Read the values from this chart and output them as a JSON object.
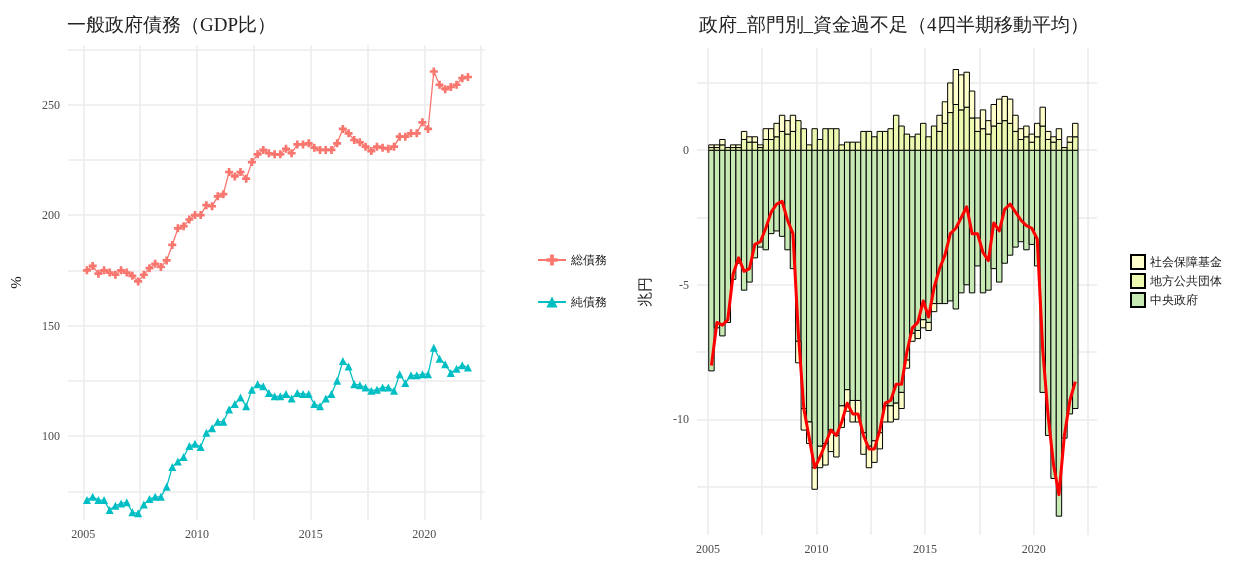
{
  "chart_data": [
    {
      "type": "line",
      "title": "一般政府債務（GDP比）",
      "ylabel": "%",
      "x": [
        "2005-03",
        "2005-06",
        "2005-09",
        "2005-12",
        "2006-03",
        "2006-06",
        "2006-09",
        "2006-12",
        "2007-03",
        "2007-06",
        "2007-09",
        "2007-12",
        "2008-03",
        "2008-06",
        "2008-09",
        "2008-12",
        "2009-03",
        "2009-06",
        "2009-09",
        "2009-12",
        "2010-03",
        "2010-06",
        "2010-09",
        "2010-12",
        "2011-03",
        "2011-06",
        "2011-09",
        "2011-12",
        "2012-03",
        "2012-06",
        "2012-09",
        "2012-12",
        "2013-03",
        "2013-06",
        "2013-09",
        "2013-12",
        "2014-03",
        "2014-06",
        "2014-09",
        "2014-12",
        "2015-03",
        "2015-06",
        "2015-09",
        "2015-12",
        "2016-03",
        "2016-06",
        "2016-09",
        "2016-12",
        "2017-03",
        "2017-06",
        "2017-09",
        "2017-12",
        "2018-03",
        "2018-06",
        "2018-09",
        "2018-12",
        "2019-03",
        "2019-06",
        "2019-09",
        "2019-12",
        "2020-03",
        "2020-06",
        "2020-09",
        "2020-12",
        "2021-03",
        "2021-06",
        "2021-09",
        "2021-12"
      ],
      "series": [
        {
          "name": "総債務",
          "color": "#f8766d",
          "marker": "cross",
          "values": [
            175,
            177,
            173.5,
            175,
            174,
            173,
            175,
            174,
            172.5,
            170,
            173,
            176,
            178,
            176.5,
            179.5,
            186.5,
            194,
            195,
            198,
            200,
            200,
            204.5,
            204,
            208.5,
            209.5,
            219.5,
            217.5,
            219.5,
            216.5,
            224,
            227.5,
            229.5,
            228,
            227.5,
            227.5,
            230,
            228,
            232,
            232,
            232.5,
            230.5,
            229.5,
            229.5,
            229.5,
            232.5,
            239,
            237,
            234,
            233,
            231,
            229,
            231,
            230.5,
            230,
            231,
            235.5,
            235.5,
            237,
            237,
            242,
            239,
            265,
            259,
            257,
            258,
            259,
            262,
            262.5
          ]
        },
        {
          "name": "純債務",
          "color": "#00bfc4",
          "marker": "triangle",
          "values": [
            71,
            72.5,
            71,
            71,
            66.5,
            68.5,
            69.5,
            70,
            65.5,
            65,
            69,
            71.5,
            72.5,
            72.5,
            77,
            86,
            88.5,
            90.5,
            95.5,
            96.5,
            95,
            101.5,
            103.5,
            106.5,
            106.5,
            112,
            114.5,
            117.5,
            113.5,
            121,
            123.5,
            122.5,
            119.5,
            118,
            118,
            119,
            117,
            119.5,
            119,
            119,
            114.5,
            113.5,
            117,
            119,
            125,
            134,
            131.5,
            123.5,
            123,
            122,
            120.5,
            121,
            122,
            122,
            120.5,
            128,
            124,
            127.5,
            127.5,
            128,
            128,
            140,
            135,
            132.5,
            128.5,
            130.5,
            132,
            131
          ]
        }
      ],
      "xlim": [
        "2004-05",
        "2022-09"
      ],
      "xticks": [
        "2005",
        {
          "value": "2007-07",
          "label": null
        },
        "2010",
        {
          "value": "2012-07",
          "label": null
        },
        "2015",
        {
          "value": "2017-07",
          "label": null
        },
        "2020",
        {
          "value": "2022-07",
          "label": null
        }
      ],
      "ylim": [
        62,
        277
      ],
      "yticks": [
        {
          "value": 75,
          "label": null
        },
        100,
        {
          "value": 125,
          "label": null
        },
        150,
        {
          "value": 175,
          "label": null
        },
        200,
        {
          "value": 225,
          "label": null
        },
        250,
        {
          "value": 275,
          "label": null
        }
      ],
      "grid": true,
      "legend": "right"
    },
    {
      "type": "bar",
      "stacked": true,
      "title": "政府_部門別_資金過不足（4四半期移動平均）",
      "ylabel": "兆円",
      "x": [
        "2005-03",
        "2005-06",
        "2005-09",
        "2005-12",
        "2006-03",
        "2006-06",
        "2006-09",
        "2006-12",
        "2007-03",
        "2007-06",
        "2007-09",
        "2007-12",
        "2008-03",
        "2008-06",
        "2008-09",
        "2008-12",
        "2009-03",
        "2009-06",
        "2009-09",
        "2009-12",
        "2010-03",
        "2010-06",
        "2010-09",
        "2010-12",
        "2011-03",
        "2011-06",
        "2011-09",
        "2011-12",
        "2012-03",
        "2012-06",
        "2012-09",
        "2012-12",
        "2013-03",
        "2013-06",
        "2013-09",
        "2013-12",
        "2014-03",
        "2014-06",
        "2014-09",
        "2014-12",
        "2015-03",
        "2015-06",
        "2015-09",
        "2015-12",
        "2016-03",
        "2016-06",
        "2016-09",
        "2016-12",
        "2017-03",
        "2017-06",
        "2017-09",
        "2017-12",
        "2018-03",
        "2018-06",
        "2018-09",
        "2018-12",
        "2019-03",
        "2019-06",
        "2019-09",
        "2019-12",
        "2020-03",
        "2020-06",
        "2020-09",
        "2020-12",
        "2021-03",
        "2021-06",
        "2021-09",
        "2021-12"
      ],
      "series": [
        {
          "name": "中央政府",
          "color": "#c7e9b4",
          "values": [
            -8.2,
            -6.6,
            -6.9,
            -6.4,
            -4.8,
            -4.2,
            -5.2,
            -4.9,
            -4.0,
            -3.6,
            -3.7,
            -3.1,
            -3.0,
            -3.2,
            -3.7,
            -4.4,
            -7.1,
            -9.6,
            -10.1,
            -11.8,
            -11.0,
            -10.9,
            -10.4,
            -10.6,
            -9.5,
            -8.9,
            -9.3,
            -9.3,
            -10.5,
            -11.0,
            -10.8,
            -10.5,
            -9.5,
            -9.5,
            -9.4,
            -9.0,
            -7.8,
            -6.8,
            -6.7,
            -6.3,
            -6.4,
            -5.7,
            -5.7,
            -5.7,
            -5.6,
            -5.9,
            -5.3,
            -5.0,
            -5.3,
            -4.3,
            -5.3,
            -5.2,
            -4.4,
            -4.9,
            -4.2,
            -3.9,
            -3.6,
            -3.4,
            -3.7,
            -3.5,
            -4.3,
            -9.0,
            -10.6,
            -12.2,
            -13.6,
            -10.7,
            -9.8,
            -9.6
          ]
        },
        {
          "name": "地方公共団体",
          "color": "#edf8b1",
          "values": [
            0.1,
            0.1,
            0.2,
            0.1,
            0.1,
            0.1,
            0.4,
            0.3,
            0.3,
            0.1,
            0.4,
            0.4,
            0.5,
            0.7,
            0.6,
            0.7,
            1.1,
            0.8,
            0.2,
            0.8,
            0.4,
            0.8,
            0.8,
            0.8,
            0.2,
            0.3,
            0.3,
            0.3,
            0.7,
            0.7,
            0.5,
            0.7,
            0.7,
            0.8,
            1.3,
            0.9,
            0.6,
            0.5,
            0.6,
            1.0,
            0.5,
            0.9,
            0.7,
            1.0,
            1.4,
            1.7,
            1.5,
            1.6,
            1.2,
            0.7,
            0.8,
            0.6,
            0.9,
            1.0,
            1.1,
            1.0,
            0.7,
            0.4,
            0.5,
            0.3,
            0.5,
            0.9,
            0.4,
            0.3,
            0.4,
            0.1,
            0.3,
            0.5
          ]
        },
        {
          "name": "社会保障基金",
          "color": "#ffffcc",
          "values": [
            0.1,
            0.1,
            0.2,
            0,
            0.1,
            0.1,
            0.3,
            0.2,
            0.2,
            0.1,
            0.4,
            0.4,
            0.5,
            0.6,
            0.5,
            0.6,
            -0.8,
            -0.8,
            -0.8,
            -0.8,
            -0.8,
            -0.8,
            -0.8,
            -0.8,
            -0.8,
            -0.8,
            -0.8,
            -0.8,
            -0.8,
            -0.8,
            -0.8,
            -0.6,
            -0.6,
            -0.6,
            -0.6,
            -0.6,
            -0.3,
            -0.3,
            -0.3,
            -0.3,
            -0.3,
            -0.3,
            0.6,
            0.8,
            1.1,
            1.3,
            1.3,
            1.3,
            1.0,
            0.5,
            0.7,
            0.5,
            0.8,
            0.9,
            0.9,
            0.9,
            0.6,
            0.4,
            0.4,
            0.3,
            0.5,
            0.7,
            0.3,
            0.2,
            0.4,
            0,
            0.2,
            0.5
          ]
        },
        {
          "type": "line",
          "color": "#ff0000",
          "marker": "none",
          "values": [
            -8.0,
            -6.4,
            -6.5,
            -6.3,
            -4.6,
            -4.0,
            -4.5,
            -4.4,
            -3.5,
            -3.4,
            -2.9,
            -2.3,
            -2.0,
            -1.9,
            -2.6,
            -3.1,
            -6.8,
            -9.6,
            -10.7,
            -11.8,
            -11.4,
            -10.9,
            -10.4,
            -10.6,
            -10.1,
            -9.4,
            -9.8,
            -9.8,
            -10.6,
            -11.1,
            -11.1,
            -10.4,
            -9.4,
            -9.3,
            -8.7,
            -8.7,
            -7.5,
            -6.6,
            -6.4,
            -5.6,
            -6.2,
            -5.1,
            -4.4,
            -3.9,
            -3.1,
            -2.9,
            -2.5,
            -2.1,
            -3.1,
            -3.1,
            -3.8,
            -4.1,
            -2.7,
            -3.0,
            -2.2,
            -2.0,
            -2.3,
            -2.6,
            -2.8,
            -2.9,
            -3.3,
            -7.4,
            -9.9,
            -11.7,
            -12.8,
            -10.6,
            -9.3,
            -8.6
          ]
        }
      ],
      "xlim": [
        "2004-07",
        "2022-12"
      ],
      "xticks": [
        "2005",
        {
          "value": "2007-07",
          "label": null
        },
        "2010",
        {
          "value": "2012-07",
          "label": null
        },
        "2015",
        {
          "value": "2017-07",
          "label": null
        },
        "2020",
        {
          "value": "2022-07",
          "label": null
        }
      ],
      "ylim": [
        -14.3,
        3.8
      ],
      "yticks": [
        {
          "value": -12.5,
          "label": null
        },
        -10,
        {
          "value": -7.5,
          "label": null
        },
        -5,
        {
          "value": -2.5,
          "label": null
        },
        0,
        {
          "value": 2.5,
          "label": null
        }
      ],
      "grid": true,
      "legend": "right"
    }
  ]
}
